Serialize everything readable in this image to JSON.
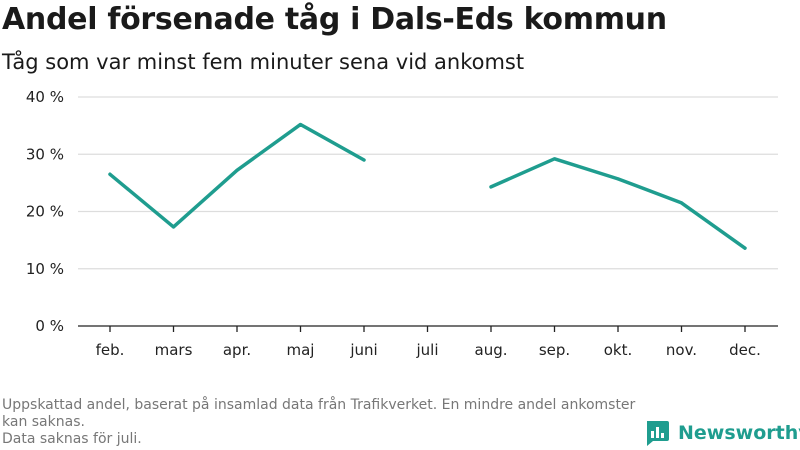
{
  "title": "Andel försenade tåg i Dals-Eds kommun",
  "subtitle": "Tåg som var minst fem minuter sena vid ankomst",
  "footnote": {
    "line1": "Uppskattad andel, baserat på insamlad data från Trafikverket. En mindre andel ankomster kan saknas.",
    "line2": "Data saknas för juli."
  },
  "logo": {
    "text": "Newsworthy",
    "icon": "bar-chart-bubble-icon"
  },
  "colors": {
    "line": "#1f9d8f",
    "grid": "#dddddd",
    "axis": "#222222",
    "footnote": "#777777"
  },
  "chart_data": {
    "type": "line",
    "title": "Andel försenade tåg i Dals-Eds kommun",
    "subtitle": "Tåg som var minst fem minuter sena vid ankomst",
    "categories": [
      "feb.",
      "mars",
      "apr.",
      "maj",
      "juni",
      "juli",
      "aug.",
      "sep.",
      "okt.",
      "nov.",
      "dec."
    ],
    "series": [
      {
        "values": [
          26.5,
          17.3,
          27.2,
          35.2,
          29.0,
          null,
          24.3,
          29.2,
          25.7,
          21.5,
          13.6
        ]
      }
    ],
    "yticks": [
      0,
      10,
      20,
      30,
      40
    ],
    "ytick_labels": [
      "0 %",
      "10 %",
      "20 %",
      "30 %",
      "40 %"
    ],
    "ylim": [
      0,
      40
    ],
    "grid": true,
    "legend": "none"
  }
}
